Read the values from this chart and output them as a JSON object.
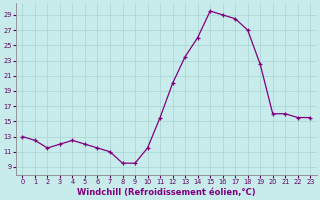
{
  "hours": [
    0,
    1,
    2,
    3,
    4,
    5,
    6,
    7,
    8,
    9,
    10,
    11,
    12,
    13,
    14,
    15,
    16,
    17,
    18,
    19,
    20,
    21,
    22,
    23
  ],
  "values": [
    13,
    12.5,
    11.5,
    12,
    12.5,
    12,
    11.5,
    11,
    9.5,
    9.5,
    11.5,
    15.5,
    20,
    23.5,
    26,
    29.5,
    29,
    28.5,
    27,
    22.5,
    16,
    16,
    15.5,
    15.5
  ],
  "line_color": "#800080",
  "marker": "+",
  "bg_color": "#c8ecec",
  "grid_color": "#a8d4d4",
  "xlabel": "Windchill (Refroidissement éolien,°C)",
  "yticks": [
    9,
    11,
    13,
    15,
    17,
    19,
    21,
    23,
    25,
    27,
    29
  ],
  "xlim": [
    -0.5,
    23.5
  ],
  "ylim": [
    8.0,
    30.5
  ],
  "axis_color": "#888888",
  "tick_color": "#600060",
  "xlabel_color": "#800080",
  "xlabel_fontsize": 6.0,
  "tick_fontsize": 4.8,
  "linewidth": 0.9,
  "markersize": 3.5,
  "markeredgewidth": 0.9
}
